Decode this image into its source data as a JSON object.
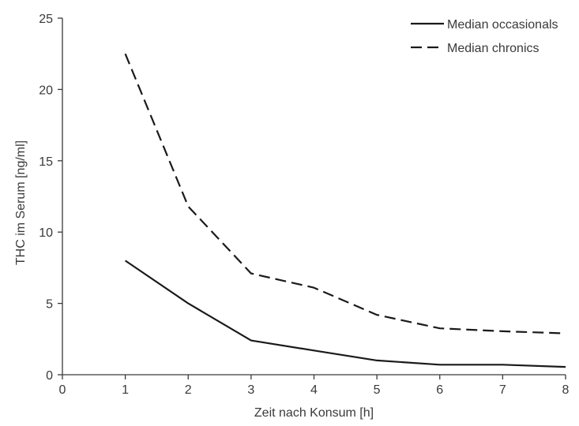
{
  "chart_data": {
    "type": "line",
    "title": "",
    "xlabel": "Zeit nach Konsum [h]",
    "ylabel": "THC im Serum [ng/ml]",
    "xlim": [
      0,
      8
    ],
    "ylim": [
      0,
      25
    ],
    "xticks": [
      "0",
      "1",
      "2",
      "3",
      "4",
      "5",
      "6",
      "7",
      "8"
    ],
    "yticks": [
      "0",
      "5",
      "10",
      "15",
      "20",
      "25"
    ],
    "grid": false,
    "legend_position": "top-right",
    "series": [
      {
        "name": "Median occasionals",
        "style": "solid",
        "color": "#1a1a1a",
        "x": [
          1,
          2,
          3,
          4,
          5,
          6,
          7,
          8
        ],
        "y": [
          8.0,
          5.0,
          2.4,
          1.7,
          1.0,
          0.7,
          0.7,
          0.55
        ]
      },
      {
        "name": "Median chronics",
        "style": "dashed",
        "color": "#1a1a1a",
        "x": [
          1,
          2,
          3,
          4,
          5,
          6,
          7,
          8
        ],
        "y": [
          22.5,
          11.8,
          7.1,
          6.1,
          4.2,
          3.25,
          3.05,
          2.9
        ]
      }
    ]
  }
}
